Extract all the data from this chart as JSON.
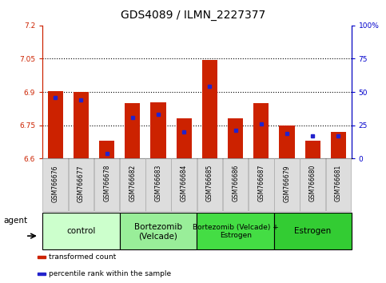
{
  "title": "GDS4089 / ILMN_2227377",
  "samples": [
    "GSM766676",
    "GSM766677",
    "GSM766678",
    "GSM766682",
    "GSM766683",
    "GSM766684",
    "GSM766685",
    "GSM766686",
    "GSM766687",
    "GSM766679",
    "GSM766680",
    "GSM766681"
  ],
  "transformed_counts": [
    6.905,
    6.9,
    6.68,
    6.85,
    6.855,
    6.78,
    7.045,
    6.78,
    6.85,
    6.748,
    6.68,
    6.72
  ],
  "percentile_ranks": [
    46,
    44,
    4,
    31,
    33,
    20,
    54,
    21,
    26,
    19,
    17,
    17
  ],
  "ymin": 6.6,
  "ymax": 7.2,
  "yticks": [
    6.6,
    6.75,
    6.9,
    7.05,
    7.2
  ],
  "ytick_labels": [
    "6.6",
    "6.75",
    "6.9",
    "7.05",
    "7.2"
  ],
  "right_yticks": [
    0,
    25,
    50,
    75,
    100
  ],
  "right_ytick_labels": [
    "0",
    "25",
    "50",
    "75",
    "100%"
  ],
  "bar_color": "#cc2200",
  "blue_color": "#2222cc",
  "bar_width": 0.6,
  "groups": [
    {
      "label": "control",
      "start": 0,
      "end": 3,
      "color": "#ccffcc",
      "fontsize": 7.5
    },
    {
      "label": "Bortezomib\n(Velcade)",
      "start": 3,
      "end": 6,
      "color": "#99ee99",
      "fontsize": 7.5
    },
    {
      "label": "Bortezomib (Velcade) +\nEstrogen",
      "start": 6,
      "end": 9,
      "color": "#44dd44",
      "fontsize": 6.5
    },
    {
      "label": "Estrogen",
      "start": 9,
      "end": 12,
      "color": "#33cc33",
      "fontsize": 7.5
    }
  ],
  "agent_label": "agent",
  "legend_items": [
    {
      "color": "#cc2200",
      "label": "transformed count"
    },
    {
      "color": "#2222cc",
      "label": "percentile rank within the sample"
    }
  ],
  "title_fontsize": 10,
  "tick_fontsize": 6.5,
  "left_axis_color": "#cc2200",
  "right_axis_color": "#0000cc",
  "grid_color": "#000000",
  "tick_box_color": "#dddddd",
  "tick_box_edge_color": "#aaaaaa"
}
